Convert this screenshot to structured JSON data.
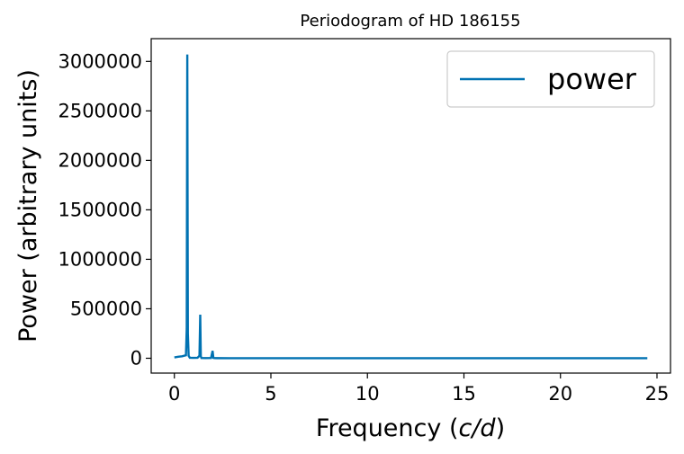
{
  "chart_data": {
    "type": "line",
    "title": "Periodogram of HD 186155",
    "xlabel_prefix": "Frequency (",
    "xlabel_italic": "c/d",
    "xlabel_suffix": ")",
    "ylabel": "Power (arbitrary units)",
    "xlim": [
      -1.2,
      25.7
    ],
    "ylim": [
      -150000,
      3230000
    ],
    "xticks": [
      0,
      5,
      10,
      15,
      20,
      25
    ],
    "xtick_labels": [
      "0",
      "5",
      "10",
      "15",
      "20",
      "25"
    ],
    "yticks": [
      0,
      500000,
      1000000,
      1500000,
      2000000,
      2500000,
      3000000
    ],
    "ytick_labels": [
      "0",
      "500000",
      "1000000",
      "1500000",
      "2000000",
      "2500000",
      "3000000"
    ],
    "grid": false,
    "legend_position": "top-right",
    "series": [
      {
        "name": "power",
        "color": "#0072b2",
        "x": [
          0.0,
          0.2,
          0.4,
          0.6,
          0.64,
          0.67,
          0.7,
          0.74,
          0.8,
          1.0,
          1.2,
          1.3,
          1.34,
          1.37,
          1.4,
          1.6,
          1.9,
          1.98,
          2.02,
          2.06,
          2.2,
          3.0,
          5.0,
          10.0,
          15.0,
          20.0,
          24.5
        ],
        "y": [
          8000,
          15000,
          20000,
          30000,
          300000,
          3070000,
          250000,
          25000,
          5000,
          4000,
          5000,
          25000,
          440000,
          20000,
          3000,
          2000,
          3000,
          75000,
          4000,
          1500,
          1000,
          800,
          500,
          400,
          300,
          200,
          150
        ]
      }
    ]
  }
}
